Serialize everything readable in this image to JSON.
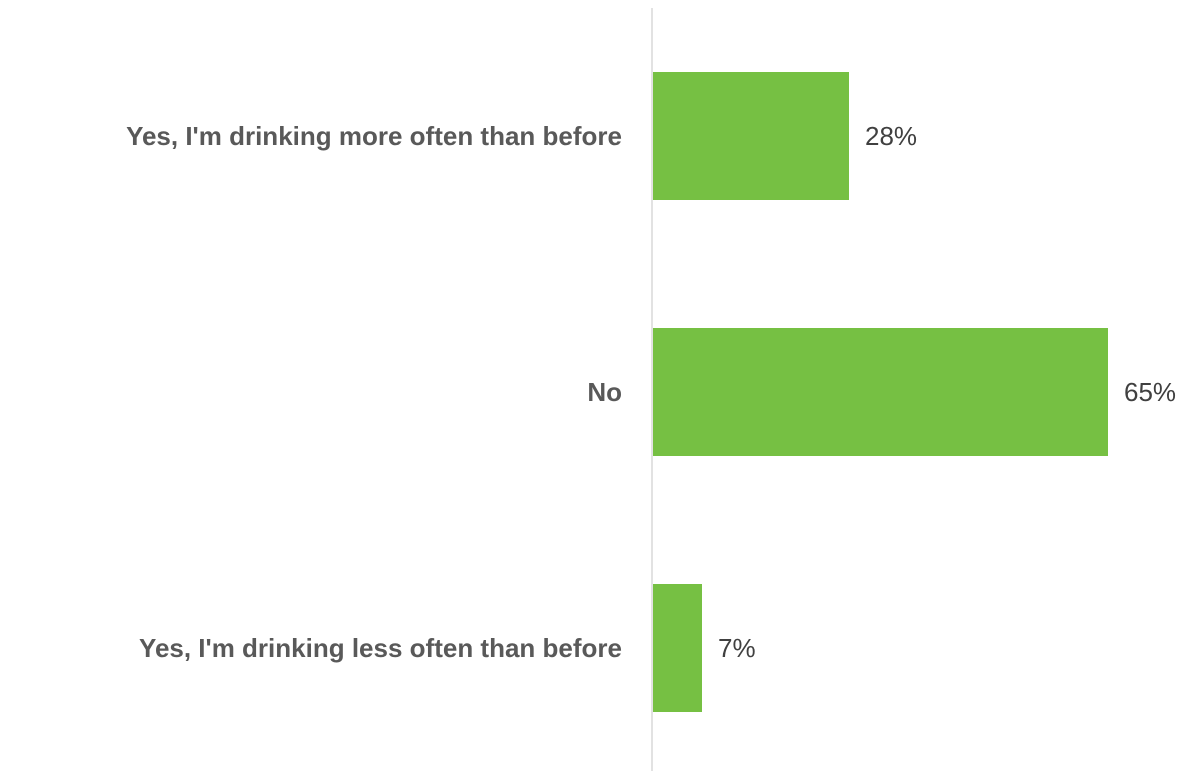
{
  "chart_data": {
    "type": "bar",
    "orientation": "horizontal",
    "categories": [
      "Yes, I'm drinking more often than before",
      "No",
      "Yes, I'm drinking less often than before"
    ],
    "values": [
      28,
      65,
      7
    ],
    "value_labels": [
      "28%",
      "65%",
      "7%"
    ],
    "unit": "%",
    "xlim": [
      0,
      100
    ],
    "grid": false,
    "legend": "none",
    "colors": {
      "bar": "#76c043",
      "axis": "#d9d9d9",
      "category_text": "#595959",
      "value_text": "#404040"
    }
  }
}
